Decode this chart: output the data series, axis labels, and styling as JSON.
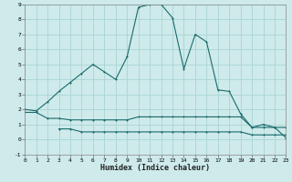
{
  "xlabel": "Humidex (Indice chaleur)",
  "bg_color": "#ceeaea",
  "grid_color": "#aad4d4",
  "line_color": "#1a6b6b",
  "x_main": [
    0,
    1,
    2,
    3,
    4,
    5,
    6,
    7,
    8,
    9,
    10,
    11,
    12,
    13,
    14,
    15,
    16,
    17,
    18,
    19,
    20,
    21,
    22,
    23
  ],
  "y_main": [
    2.0,
    1.9,
    2.5,
    3.2,
    3.8,
    4.4,
    5.0,
    4.5,
    4.0,
    5.5,
    8.8,
    9.0,
    9.0,
    8.1,
    4.7,
    7.0,
    6.5,
    3.3,
    3.2,
    1.7,
    0.8,
    1.0,
    0.8,
    0.1
  ],
  "x_line2": [
    0,
    1,
    2,
    3,
    4,
    5,
    6,
    7,
    8,
    9,
    10,
    11,
    12,
    13,
    14,
    15,
    16,
    17,
    18,
    19,
    20,
    21,
    22,
    23
  ],
  "y_line2": [
    1.8,
    1.8,
    1.4,
    1.4,
    1.3,
    1.3,
    1.3,
    1.3,
    1.3,
    1.3,
    1.5,
    1.5,
    1.5,
    1.5,
    1.5,
    1.5,
    1.5,
    1.5,
    1.5,
    1.5,
    0.8,
    0.8,
    0.8,
    0.8
  ],
  "x_line3": [
    3,
    4,
    5,
    6,
    7,
    8,
    9,
    10,
    11,
    12,
    13,
    14,
    15,
    16,
    17,
    18,
    19,
    20,
    21,
    22,
    23
  ],
  "y_line3": [
    0.7,
    0.7,
    0.5,
    0.5,
    0.5,
    0.5,
    0.5,
    0.5,
    0.5,
    0.5,
    0.5,
    0.5,
    0.5,
    0.5,
    0.5,
    0.5,
    0.5,
    0.3,
    0.3,
    0.3,
    0.3
  ],
  "xlim": [
    0,
    23
  ],
  "ylim": [
    -1,
    9
  ],
  "yticks": [
    -1,
    0,
    1,
    2,
    3,
    4,
    5,
    6,
    7,
    8,
    9
  ],
  "xticks": [
    0,
    1,
    2,
    3,
    4,
    5,
    6,
    7,
    8,
    9,
    10,
    11,
    12,
    13,
    14,
    15,
    16,
    17,
    18,
    19,
    20,
    21,
    22,
    23
  ]
}
